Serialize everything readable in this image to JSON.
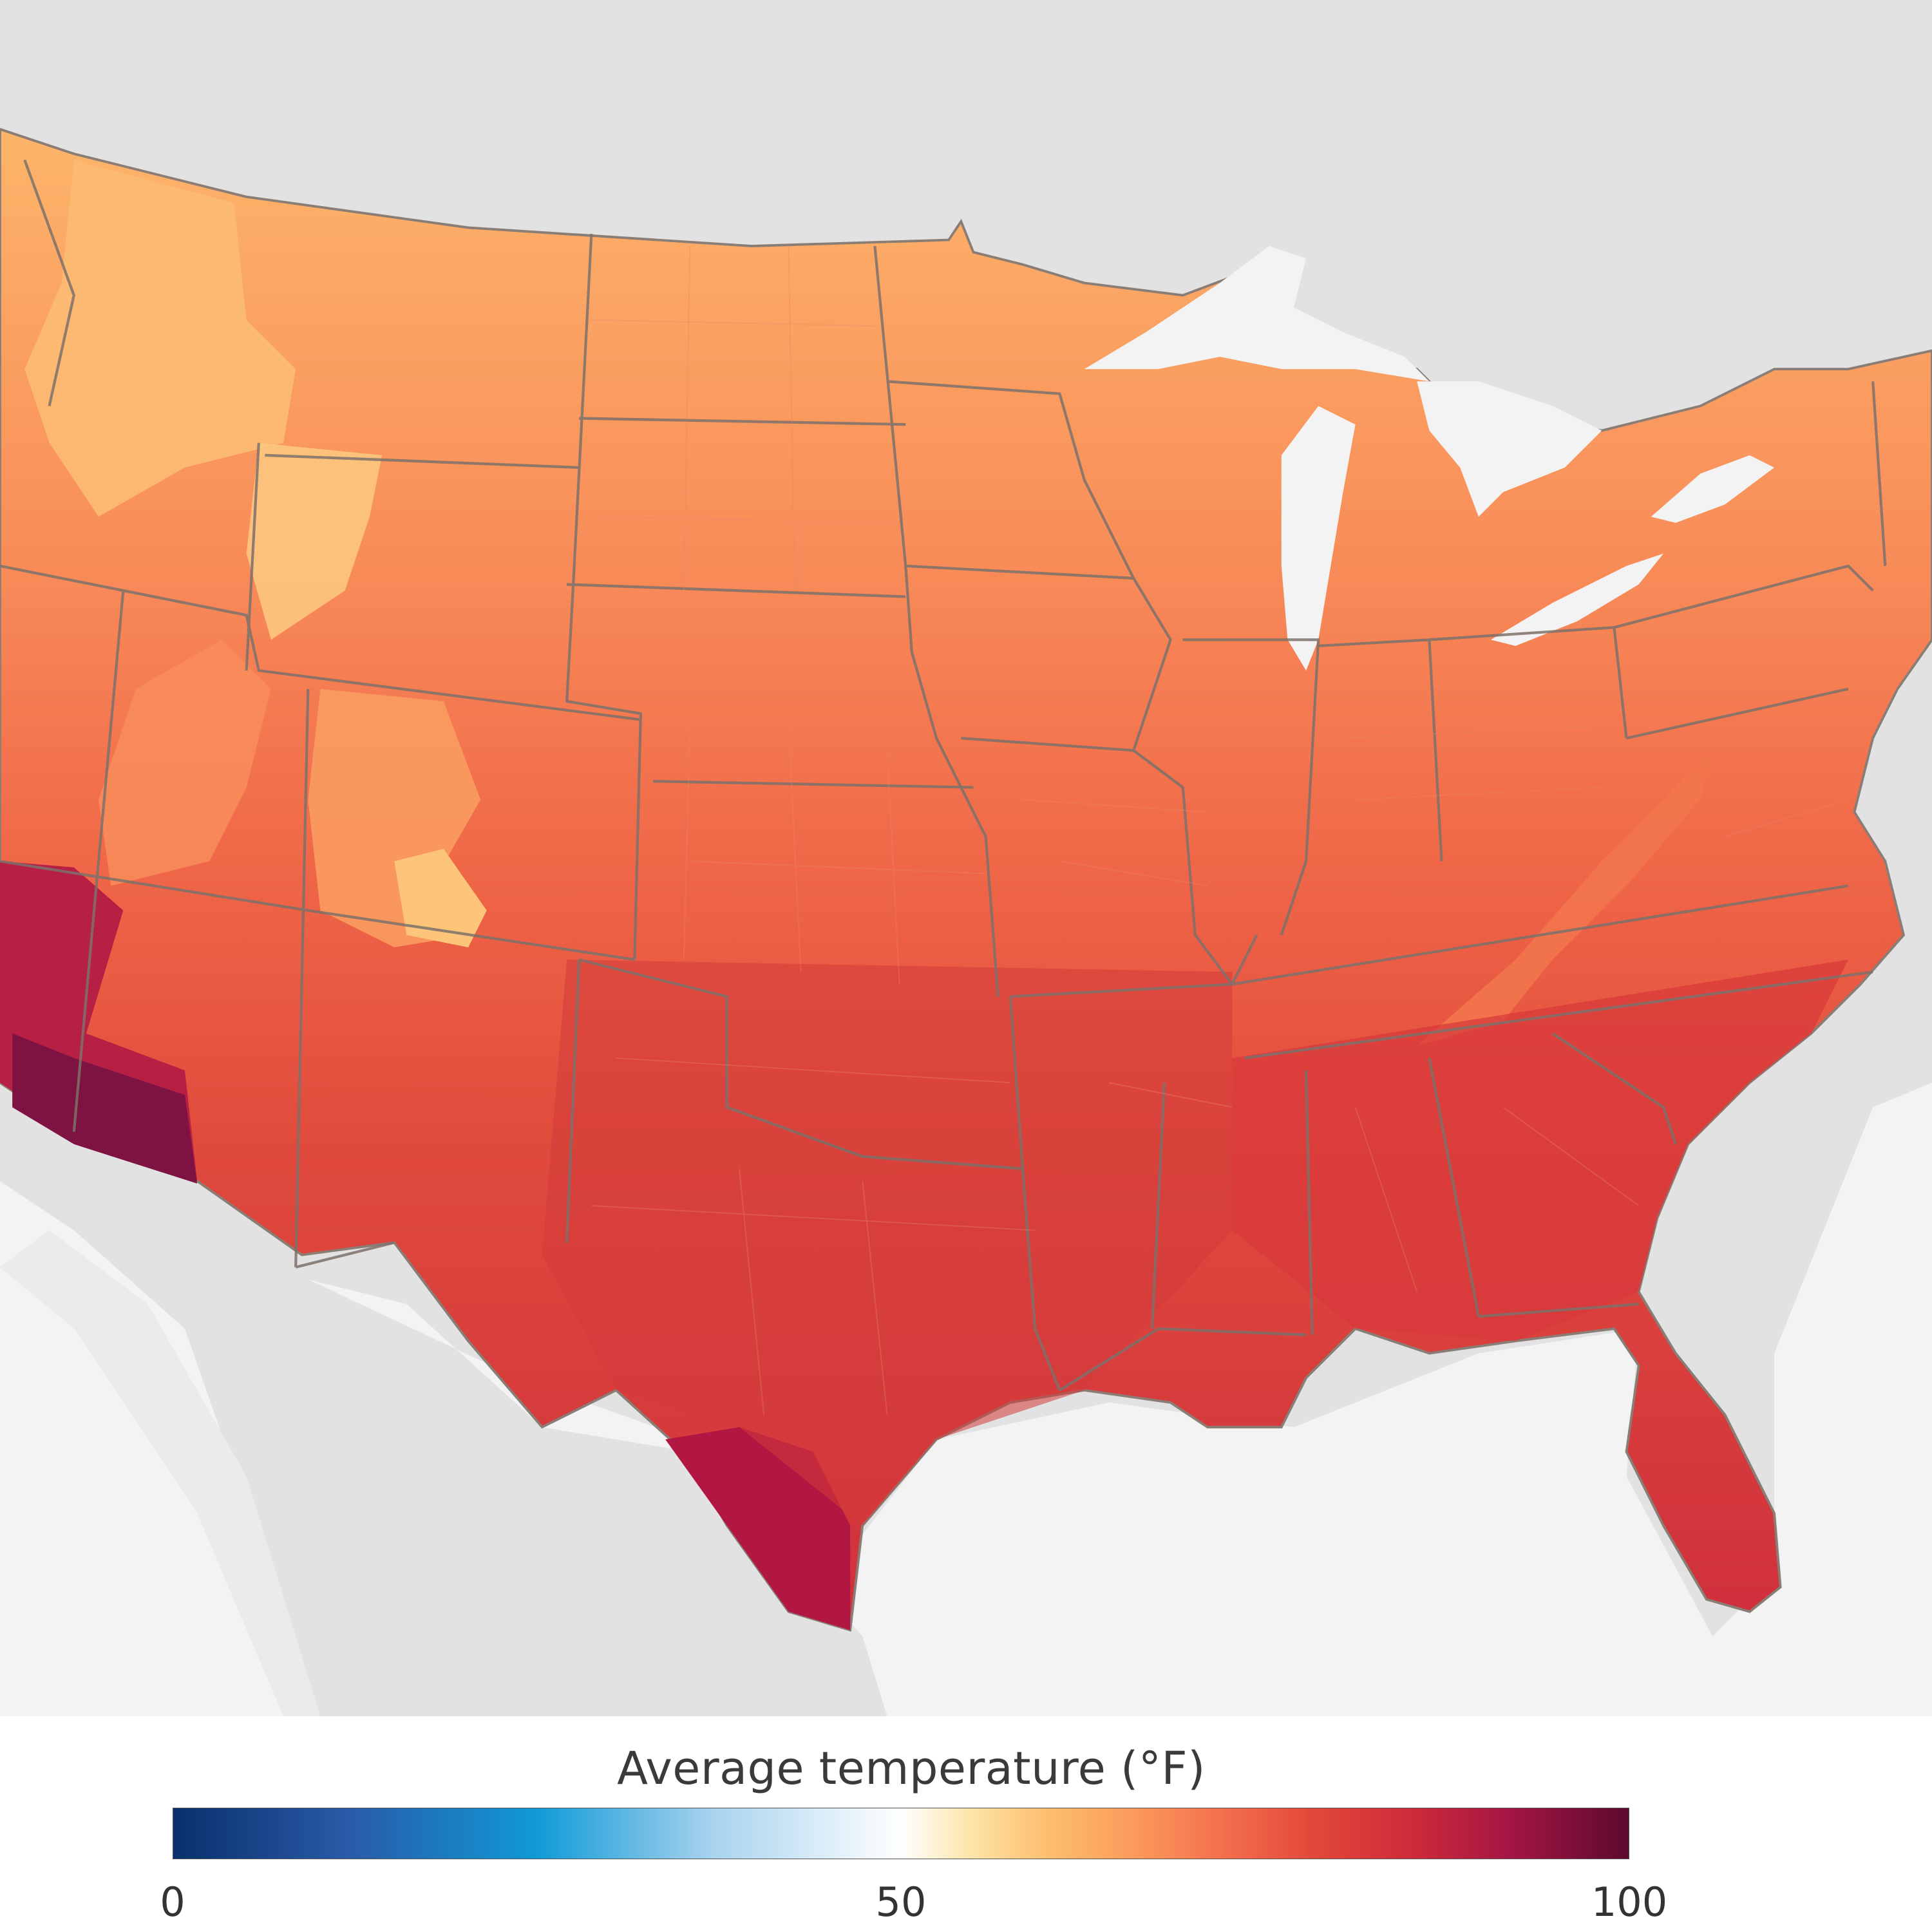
{
  "map": {
    "water_color": "#f3f3f3",
    "land_outside_color": "#e2e2e2",
    "state_border_color": "#7a6f6a"
  },
  "legend": {
    "title": "Average temperature",
    "unit": "(°F)",
    "min": 0,
    "max": 100,
    "ticks": [
      "0",
      "50",
      "100"
    ],
    "tick_values": [
      0,
      50,
      100
    ],
    "colormap": [
      {
        "value": 0,
        "color": "#08306b"
      },
      {
        "value": 12,
        "color": "#2a5aa8"
      },
      {
        "value": 25,
        "color": "#0f9ad6"
      },
      {
        "value": 37,
        "color": "#a8d3ee"
      },
      {
        "value": 50,
        "color": "#ffffff"
      },
      {
        "value": 55,
        "color": "#fde3a6"
      },
      {
        "value": 60,
        "color": "#fdbf6f"
      },
      {
        "value": 66,
        "color": "#fb9a5b"
      },
      {
        "value": 72,
        "color": "#f4704e"
      },
      {
        "value": 78,
        "color": "#e34a3a"
      },
      {
        "value": 85,
        "color": "#cf2b3a"
      },
      {
        "value": 92,
        "color": "#a31544"
      },
      {
        "value": 100,
        "color": "#5c0a2e"
      }
    ]
  }
}
